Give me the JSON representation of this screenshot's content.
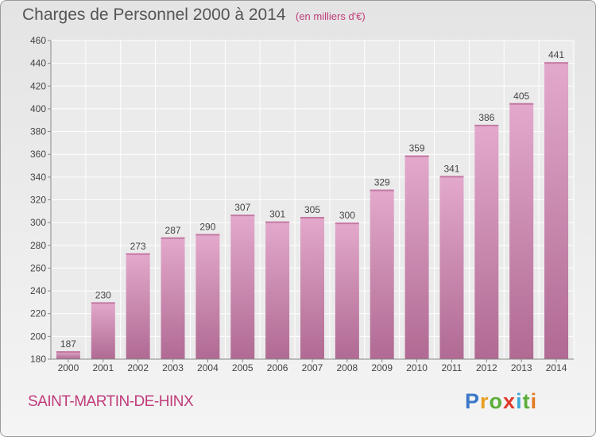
{
  "title": "Charges de Personnel 2000 à 2014",
  "unit_note": "(en milliers d'€)",
  "commune": "SAINT-MARTIN-DE-HINX",
  "logo": {
    "letters": [
      {
        "ch": "P",
        "color": "#3b78c8"
      },
      {
        "ch": "r",
        "color": "#e6a020"
      },
      {
        "ch": "o",
        "color": "#5cae3a"
      },
      {
        "ch": "x",
        "color": "#e03a2a"
      },
      {
        "ch": "i",
        "color": "#3ea8d8"
      },
      {
        "ch": "t",
        "color": "#5cae3a"
      },
      {
        "ch": "i",
        "color": "#e07a20"
      }
    ]
  },
  "colors": {
    "bar": "#dc9ec3",
    "bar_dark": "#b06a93",
    "title": "#555555",
    "accent": "#c03c7a"
  },
  "chart_data": {
    "type": "bar",
    "title": "Charges de Personnel 2000 à 2014",
    "subtitle": "(en milliers d'€)",
    "categories": [
      "2000",
      "2001",
      "2002",
      "2003",
      "2004",
      "2005",
      "2006",
      "2007",
      "2008",
      "2009",
      "2010",
      "2011",
      "2012",
      "2013",
      "2014"
    ],
    "values": [
      187,
      230,
      273,
      287,
      290,
      307,
      301,
      305,
      300,
      329,
      359,
      341,
      386,
      405,
      441
    ],
    "ylim": [
      180,
      460
    ],
    "yticks": [
      180,
      200,
      220,
      240,
      260,
      280,
      300,
      320,
      340,
      360,
      380,
      400,
      420,
      440,
      460
    ],
    "grid": true,
    "data_labels": true
  }
}
